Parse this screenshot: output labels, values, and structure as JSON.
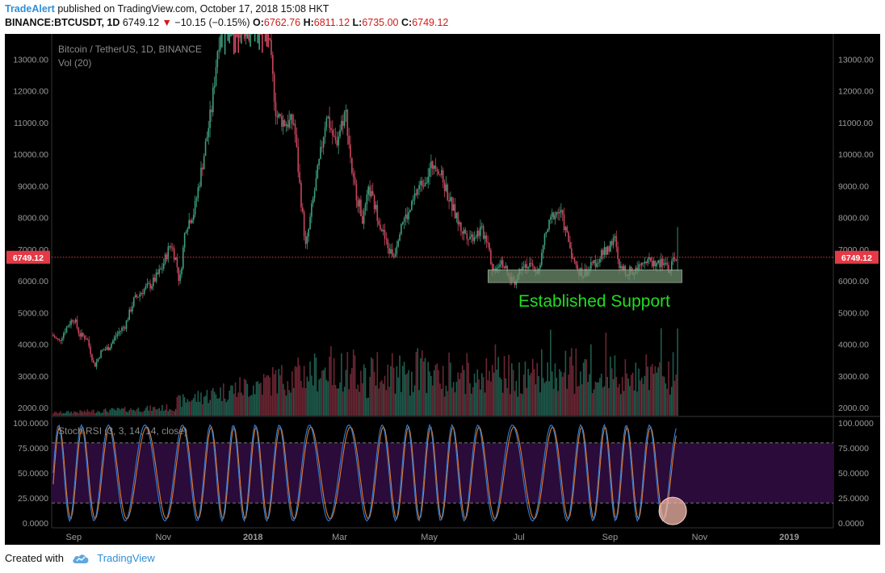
{
  "header": {
    "publisher": "TradeAlert",
    "published_text": "published on TradingView.com, October 17, 2018 15:08 HKT",
    "symbol": "BINANCE:BTCUSDT, 1D",
    "last": "6749.12",
    "change": "−10.15 (−0.15%)",
    "o_label": "O:",
    "o_value": "6762.76",
    "h_label": "H:",
    "h_value": "6811.12",
    "l_label": "L:",
    "l_value": "6735.00",
    "c_label": "C:",
    "c_value": "6749.12"
  },
  "chart": {
    "series_title": "Bitcoin / TetherUS, 1D, BINANCE",
    "volume_title": "Vol (20)",
    "price_badge": "6749.12",
    "annotation": "Established Support",
    "rsi_title": "Stoch RSI (3, 3, 14, 14, close)"
  },
  "colors": {
    "up": "#3e9e7e",
    "down": "#c9465d",
    "annotation": "#22dd22",
    "rsi_k": "#2f7fd8",
    "rsi_d": "#e0782a",
    "rsi_band": "#2a0b3a",
    "support_box": "#6e8f6e",
    "badge": "#e53946"
  },
  "footer": {
    "created_with": "Created with",
    "brand": "TradingView"
  },
  "chart_data": [
    {
      "type": "candlestick",
      "title": "Bitcoin / TetherUS, 1D, BINANCE",
      "x_ticks": [
        "Sep",
        "Nov",
        "2018",
        "Mar",
        "May",
        "Jul",
        "Sep",
        "Nov",
        "2019"
      ],
      "y_ticks": [
        "2000.00",
        "3000.00",
        "4000.00",
        "5000.00",
        "6000.00",
        "7000.00",
        "8000.00",
        "9000.00",
        "10000.00",
        "11000.00",
        "12000.00",
        "13000.00"
      ],
      "ylim": [
        1750,
        13800
      ],
      "last_price": 6749.12,
      "approx_path": [
        {
          "date": "2017-08-17",
          "close": 4300
        },
        {
          "date": "2017-08-22",
          "close": 4100
        },
        {
          "date": "2017-08-28",
          "close": 4600
        },
        {
          "date": "2017-09-01",
          "close": 4850
        },
        {
          "date": "2017-09-05",
          "close": 4300
        },
        {
          "date": "2017-09-10",
          "close": 4200
        },
        {
          "date": "2017-09-15",
          "close": 3300
        },
        {
          "date": "2017-09-20",
          "close": 3800
        },
        {
          "date": "2017-09-25",
          "close": 3900
        },
        {
          "date": "2017-09-30",
          "close": 4300
        },
        {
          "date": "2017-10-06",
          "close": 4600
        },
        {
          "date": "2017-10-12",
          "close": 5400
        },
        {
          "date": "2017-10-18",
          "close": 5700
        },
        {
          "date": "2017-10-24",
          "close": 5900
        },
        {
          "date": "2017-10-31",
          "close": 6400
        },
        {
          "date": "2017-11-06",
          "close": 7200
        },
        {
          "date": "2017-11-10",
          "close": 6600
        },
        {
          "date": "2017-11-12",
          "close": 5900
        },
        {
          "date": "2017-11-16",
          "close": 7700
        },
        {
          "date": "2017-11-22",
          "close": 8200
        },
        {
          "date": "2017-11-28",
          "close": 9800
        },
        {
          "date": "2017-12-04",
          "close": 11500
        },
        {
          "date": "2017-12-08",
          "close": 13400
        },
        {
          "date": "2017-12-12",
          "close": 14500
        },
        {
          "date": "2017-12-17",
          "close": 16500
        },
        {
          "date": "2017-12-22",
          "close": 13700
        },
        {
          "date": "2017-12-28",
          "close": 14000
        },
        {
          "date": "2018-01-06",
          "close": 16000
        },
        {
          "date": "2018-01-12",
          "close": 13500
        },
        {
          "date": "2018-01-17",
          "close": 11200
        },
        {
          "date": "2018-01-23",
          "close": 11000
        },
        {
          "date": "2018-01-29",
          "close": 11000
        },
        {
          "date": "2018-02-02",
          "close": 8900
        },
        {
          "date": "2018-02-06",
          "close": 7000
        },
        {
          "date": "2018-02-10",
          "close": 8300
        },
        {
          "date": "2018-02-16",
          "close": 10000
        },
        {
          "date": "2018-02-20",
          "close": 11300
        },
        {
          "date": "2018-02-26",
          "close": 10300
        },
        {
          "date": "2018-03-05",
          "close": 11400
        },
        {
          "date": "2018-03-10",
          "close": 9200
        },
        {
          "date": "2018-03-17",
          "close": 7900
        },
        {
          "date": "2018-03-21",
          "close": 8900
        },
        {
          "date": "2018-03-28",
          "close": 7900
        },
        {
          "date": "2018-04-03",
          "close": 7000
        },
        {
          "date": "2018-04-07",
          "close": 6800
        },
        {
          "date": "2018-04-12",
          "close": 7900
        },
        {
          "date": "2018-04-17",
          "close": 8100
        },
        {
          "date": "2018-04-23",
          "close": 8900
        },
        {
          "date": "2018-04-29",
          "close": 9300
        },
        {
          "date": "2018-05-05",
          "close": 9800
        },
        {
          "date": "2018-05-10",
          "close": 9200
        },
        {
          "date": "2018-05-16",
          "close": 8400
        },
        {
          "date": "2018-05-23",
          "close": 7600
        },
        {
          "date": "2018-05-30",
          "close": 7400
        },
        {
          "date": "2018-06-05",
          "close": 7600
        },
        {
          "date": "2018-06-10",
          "close": 7300
        },
        {
          "date": "2018-06-13",
          "close": 6300
        },
        {
          "date": "2018-06-19",
          "close": 6700
        },
        {
          "date": "2018-06-24",
          "close": 6100
        },
        {
          "date": "2018-06-29",
          "close": 6000
        },
        {
          "date": "2018-07-03",
          "close": 6600
        },
        {
          "date": "2018-07-10",
          "close": 6400
        },
        {
          "date": "2018-07-15",
          "close": 6300
        },
        {
          "date": "2018-07-18",
          "close": 7300
        },
        {
          "date": "2018-07-24",
          "close": 8100
        },
        {
          "date": "2018-07-29",
          "close": 8200
        },
        {
          "date": "2018-08-03",
          "close": 7400
        },
        {
          "date": "2018-08-08",
          "close": 6500
        },
        {
          "date": "2018-08-13",
          "close": 6200
        },
        {
          "date": "2018-08-18",
          "close": 6400
        },
        {
          "date": "2018-08-24",
          "close": 6700
        },
        {
          "date": "2018-08-30",
          "close": 7000
        },
        {
          "date": "2018-09-04",
          "close": 7400
        },
        {
          "date": "2018-09-07",
          "close": 6400
        },
        {
          "date": "2018-09-12",
          "close": 6300
        },
        {
          "date": "2018-09-18",
          "close": 6300
        },
        {
          "date": "2018-09-22",
          "close": 6700
        },
        {
          "date": "2018-09-28",
          "close": 6600
        },
        {
          "date": "2018-10-04",
          "close": 6550
        },
        {
          "date": "2018-10-10",
          "close": 6550
        },
        {
          "date": "2018-10-11",
          "close": 6250
        },
        {
          "date": "2018-10-15",
          "close": 6700
        },
        {
          "date": "2018-10-17",
          "close": 6749
        }
      ]
    },
    {
      "type": "bar",
      "title": "Vol (20)",
      "note": "volume bars at the bottom of the price pane, unlabeled scale"
    },
    {
      "type": "line",
      "title": "Stoch RSI (3, 3, 14, 14, close)",
      "y_ticks": [
        "100.0000",
        "75.0000",
        "50.0000",
        "25.0000",
        "0.0000"
      ],
      "ylim": [
        0,
        100
      ],
      "band": [
        20,
        80
      ],
      "series": [
        {
          "name": "K"
        },
        {
          "name": "D"
        }
      ]
    }
  ]
}
